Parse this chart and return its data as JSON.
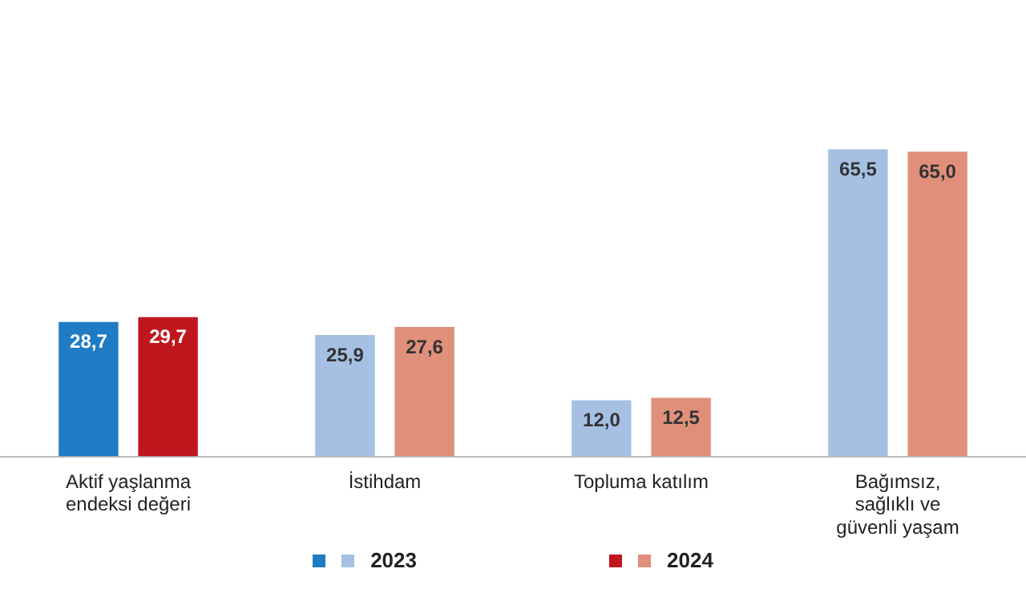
{
  "chart_data": {
    "type": "bar",
    "categories": [
      "Aktif yaşlanma endeksi değeri",
      "İstihdam",
      "Topluma katılım",
      "Bağımsız, sağlıklı ve güvenli yaşam"
    ],
    "series": [
      {
        "name": "2023",
        "colors": [
          "#1f7bc4",
          "#a6c0e4",
          "#a6c0e4",
          "#a6c0e4"
        ],
        "values": [
          28.7,
          25.9,
          12.0,
          65.5
        ],
        "value_labels": [
          "28,7",
          "25,9",
          "12,0",
          "65,5"
        ]
      },
      {
        "name": "2024",
        "colors": [
          "#c0171e",
          "#e0907a",
          "#e0907a",
          "#e0907a"
        ],
        "values": [
          29.7,
          27.6,
          12.5,
          65.0
        ],
        "value_labels": [
          "29,7",
          "27,6",
          "12,5",
          "65,0"
        ]
      }
    ],
    "grid": false,
    "legend": "bottom"
  }
}
